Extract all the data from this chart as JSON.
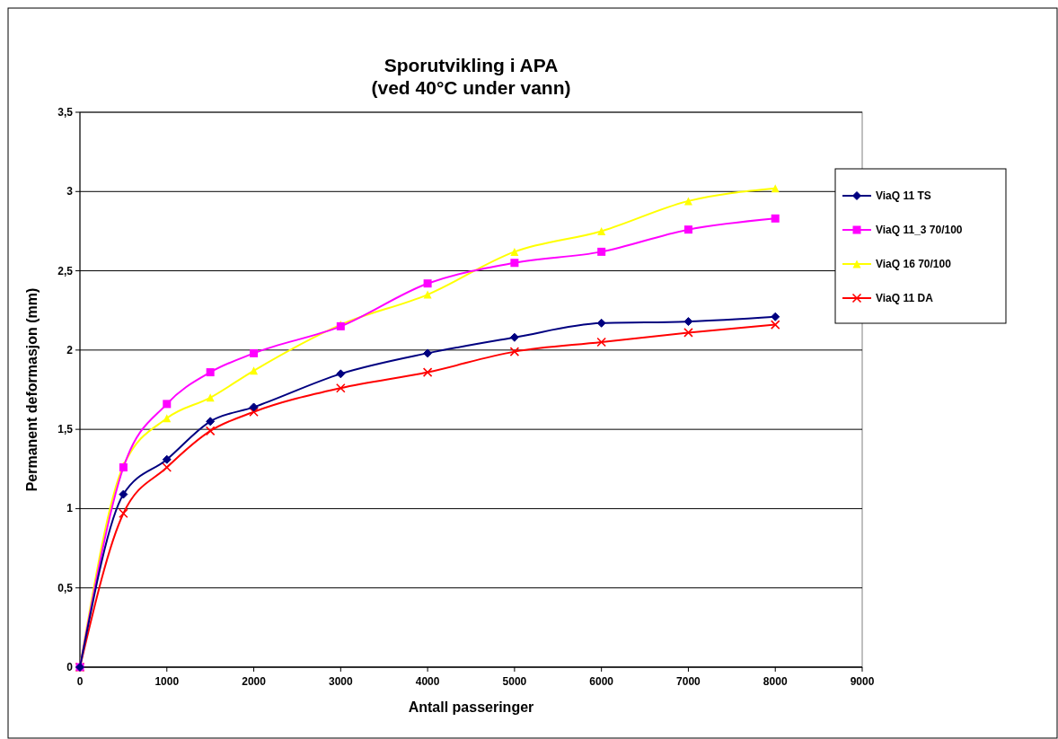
{
  "chart_data": {
    "type": "line",
    "title": "Sporutvikling i APA\n(ved 40°C under vann)",
    "xlabel": "Antall passeringer",
    "ylabel": "Permanent deformasjon (mm)",
    "x": [
      0,
      500,
      1000,
      1500,
      2000,
      3000,
      4000,
      5000,
      6000,
      7000,
      8000
    ],
    "series": [
      {
        "name": "ViaQ 11 TS",
        "color": "#000080",
        "marker": "diamond",
        "values": [
          0,
          1.09,
          1.31,
          1.55,
          1.64,
          1.85,
          1.98,
          2.08,
          2.17,
          2.18,
          2.21
        ]
      },
      {
        "name": "ViaQ 11_3 70/100",
        "color": "#ff00ff",
        "marker": "square",
        "values": [
          0,
          1.26,
          1.66,
          1.86,
          1.98,
          2.15,
          2.42,
          2.55,
          2.62,
          2.76,
          2.83
        ]
      },
      {
        "name": "ViaQ 16 70/100",
        "color": "#ffff00",
        "marker": "triangle",
        "values": [
          0,
          1.27,
          1.57,
          1.7,
          1.87,
          2.16,
          2.35,
          2.62,
          2.75,
          2.94,
          3.02
        ]
      },
      {
        "name": "ViaQ 11 DA",
        "color": "#ff0000",
        "marker": "cross",
        "values": [
          0,
          0.97,
          1.26,
          1.49,
          1.61,
          1.76,
          1.86,
          1.99,
          2.05,
          2.11,
          2.16
        ]
      }
    ],
    "xlim": [
      0,
      9000
    ],
    "xticks": [
      0,
      1000,
      2000,
      3000,
      4000,
      5000,
      6000,
      7000,
      8000,
      9000
    ],
    "ylim": [
      0,
      3.5
    ],
    "yticks": [
      0,
      {
        "value": 0.5,
        "label": "0,5"
      },
      1,
      {
        "value": 1.5,
        "label": "1,5"
      },
      2,
      {
        "value": 2.5,
        "label": "2,5"
      },
      3,
      {
        "value": 3.5,
        "label": "3,5"
      }
    ],
    "grid": "y",
    "legend": "right"
  }
}
